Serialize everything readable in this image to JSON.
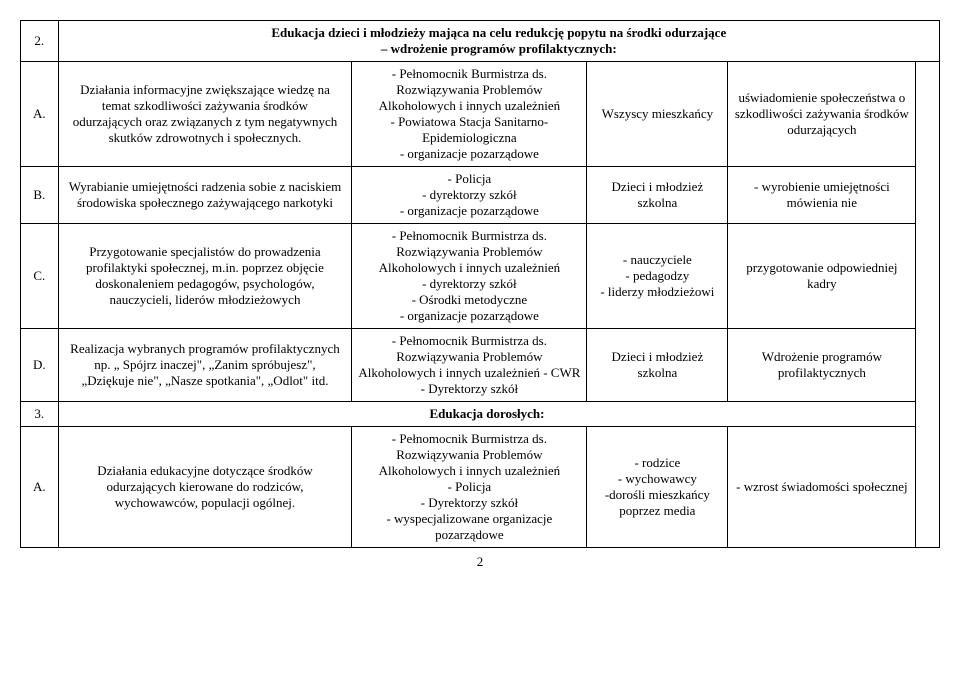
{
  "section2": {
    "label": "2.",
    "title_line1": "Edukacja dzieci i młodzieży mająca na celu redukcję popytu na środki odurzające",
    "title_line2": "– wdrożenie programów profilaktycznych:",
    "rows": {
      "A": {
        "label": "A.",
        "desc": "Działania informacyjne zwiększające wiedzę na temat szkodliwości zażywania środków odurzających oraz związanych z tym negatywnych skutków zdrowotnych i społecznych.",
        "resp": "- Pełnomocnik  Burmistrza ds. Rozwiązywania Problemów Alkoholowych i innych uzależnień\n- Powiatowa Stacja Sanitarno- Epidemiologiczna\n- organizacje pozarządowe",
        "target": "Wszyscy mieszkańcy",
        "outcome": "uświadomienie społeczeństwa o szkodliwości zażywania środków odurzających"
      },
      "B": {
        "label": "B.",
        "desc": "Wyrabianie umiejętności radzenia sobie z naciskiem środowiska społecznego zażywającego narkotyki",
        "resp": "- Policja\n- dyrektorzy szkół\n- organizacje pozarządowe",
        "target": "Dzieci i młodzież szkolna",
        "outcome": "- wyrobienie umiejętności mówienia nie"
      },
      "C": {
        "label": "C.",
        "desc": "Przygotowanie specjalistów do prowadzenia profilaktyki społecznej, m.in. poprzez objęcie doskonaleniem pedagogów, psychologów, nauczycieli, liderów młodzieżowych",
        "resp": "- Pełnomocnik  Burmistrza ds. Rozwiązywania Problemów Alkoholowych i innych uzależnień\n- dyrektorzy szkół\n- Ośrodki metodyczne\n- organizacje pozarządowe",
        "target": "- nauczyciele\n- pedagodzy\n- liderzy młodzieżowi",
        "outcome": "przygotowanie odpowiedniej kadry"
      },
      "D": {
        "label": "D.",
        "desc": "Realizacja wybranych programów profilaktycznych np. „ Spójrz inaczej\", „Zanim spróbujesz\", „Dziękuje nie\", „Nasze spotkania\", „Odlot\" itd.",
        "resp": "- Pełnomocnik  Burmistrza ds. Rozwiązywania Problemów Alkoholowych i innych uzależnień - CWR\n- Dyrektorzy szkół",
        "target": "Dzieci i młodzież szkolna",
        "outcome": "Wdrożenie programów profilaktycznych"
      }
    }
  },
  "section3": {
    "label": "3.",
    "title": "Edukacja dorosłych:",
    "rows": {
      "A": {
        "label": "A.",
        "desc": "Działania edukacyjne dotyczące środków odurzających kierowane do rodziców, wychowawców, populacji ogólnej.",
        "resp": "- Pełnomocnik  Burmistrza ds. Rozwiązywania Problemów Alkoholowych i innych uzależnień\n- Policja\n- Dyrektorzy szkół\n- wyspecjalizowane organizacje pozarządowe",
        "target": "- rodzice\n- wychowawcy\n-dorośli mieszkańcy poprzez media",
        "outcome": "- wzrost świadomości społecznej"
      }
    }
  },
  "pageNumber": "2"
}
